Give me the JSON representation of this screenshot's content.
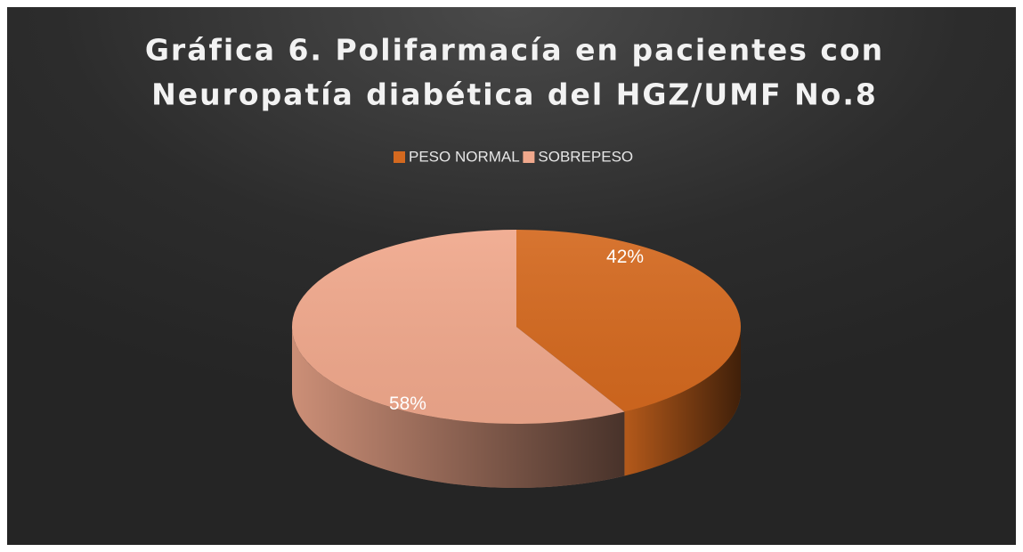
{
  "chart_data": {
    "type": "pie3d",
    "title": [
      "Gráfica 6. Polifarmacía en pacientes con",
      "Neuropatía diabética del HGZ/UMF No.8"
    ],
    "categories": [
      "PESO NORMAL",
      "SOBREPESO"
    ],
    "values": [
      42,
      58
    ],
    "value_labels": [
      "42%",
      "58%"
    ],
    "colors": [
      "#d4691f",
      "#f0a88c"
    ],
    "legend": "top"
  }
}
